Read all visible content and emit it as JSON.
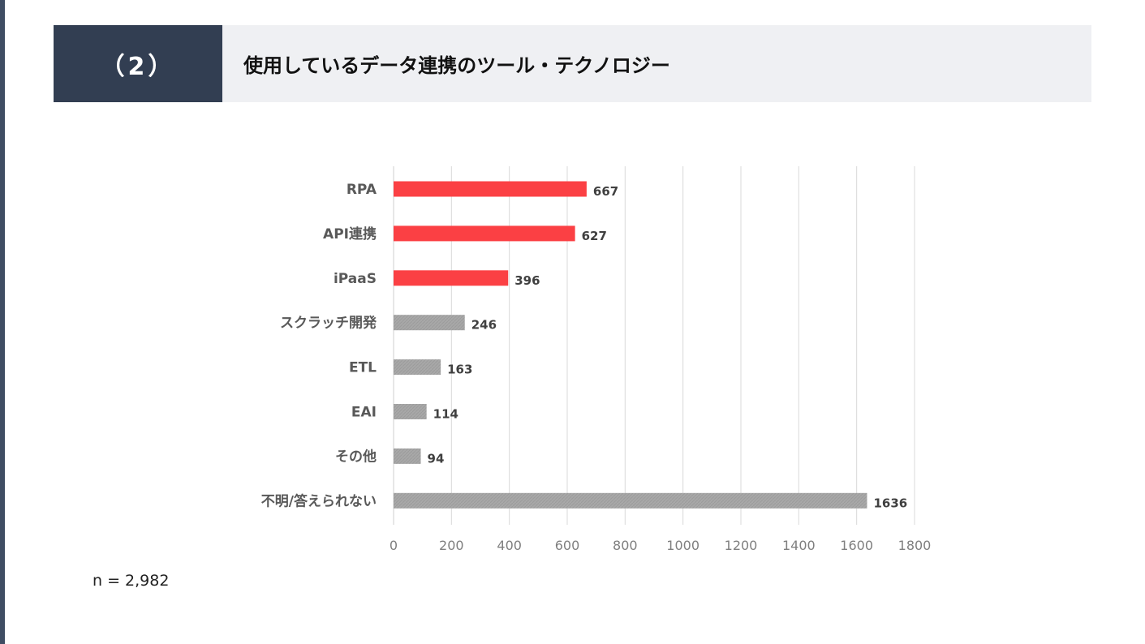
{
  "header": {
    "number": "（2）",
    "title": "使用しているデータ連携のツール・テクノロジー"
  },
  "chart_data": {
    "type": "bar",
    "orientation": "horizontal",
    "categories": [
      "RPA",
      "API連携",
      "iPaaS",
      "スクラッチ開発",
      "ETL",
      "EAI",
      "その他",
      "不明/答えられない"
    ],
    "values": [
      667,
      627,
      396,
      246,
      163,
      114,
      94,
      1636
    ],
    "xlim": [
      0,
      1800
    ],
    "xticks": [
      0,
      200,
      400,
      600,
      800,
      1000,
      1200,
      1400,
      1600,
      1800
    ],
    "grid": "vertical",
    "highlight_color": "#fb4044",
    "default_color": "#a6a6a6",
    "highlighted_categories": [
      "RPA",
      "API連携",
      "iPaaS"
    ]
  },
  "footer": {
    "n": "n = 2,982"
  }
}
